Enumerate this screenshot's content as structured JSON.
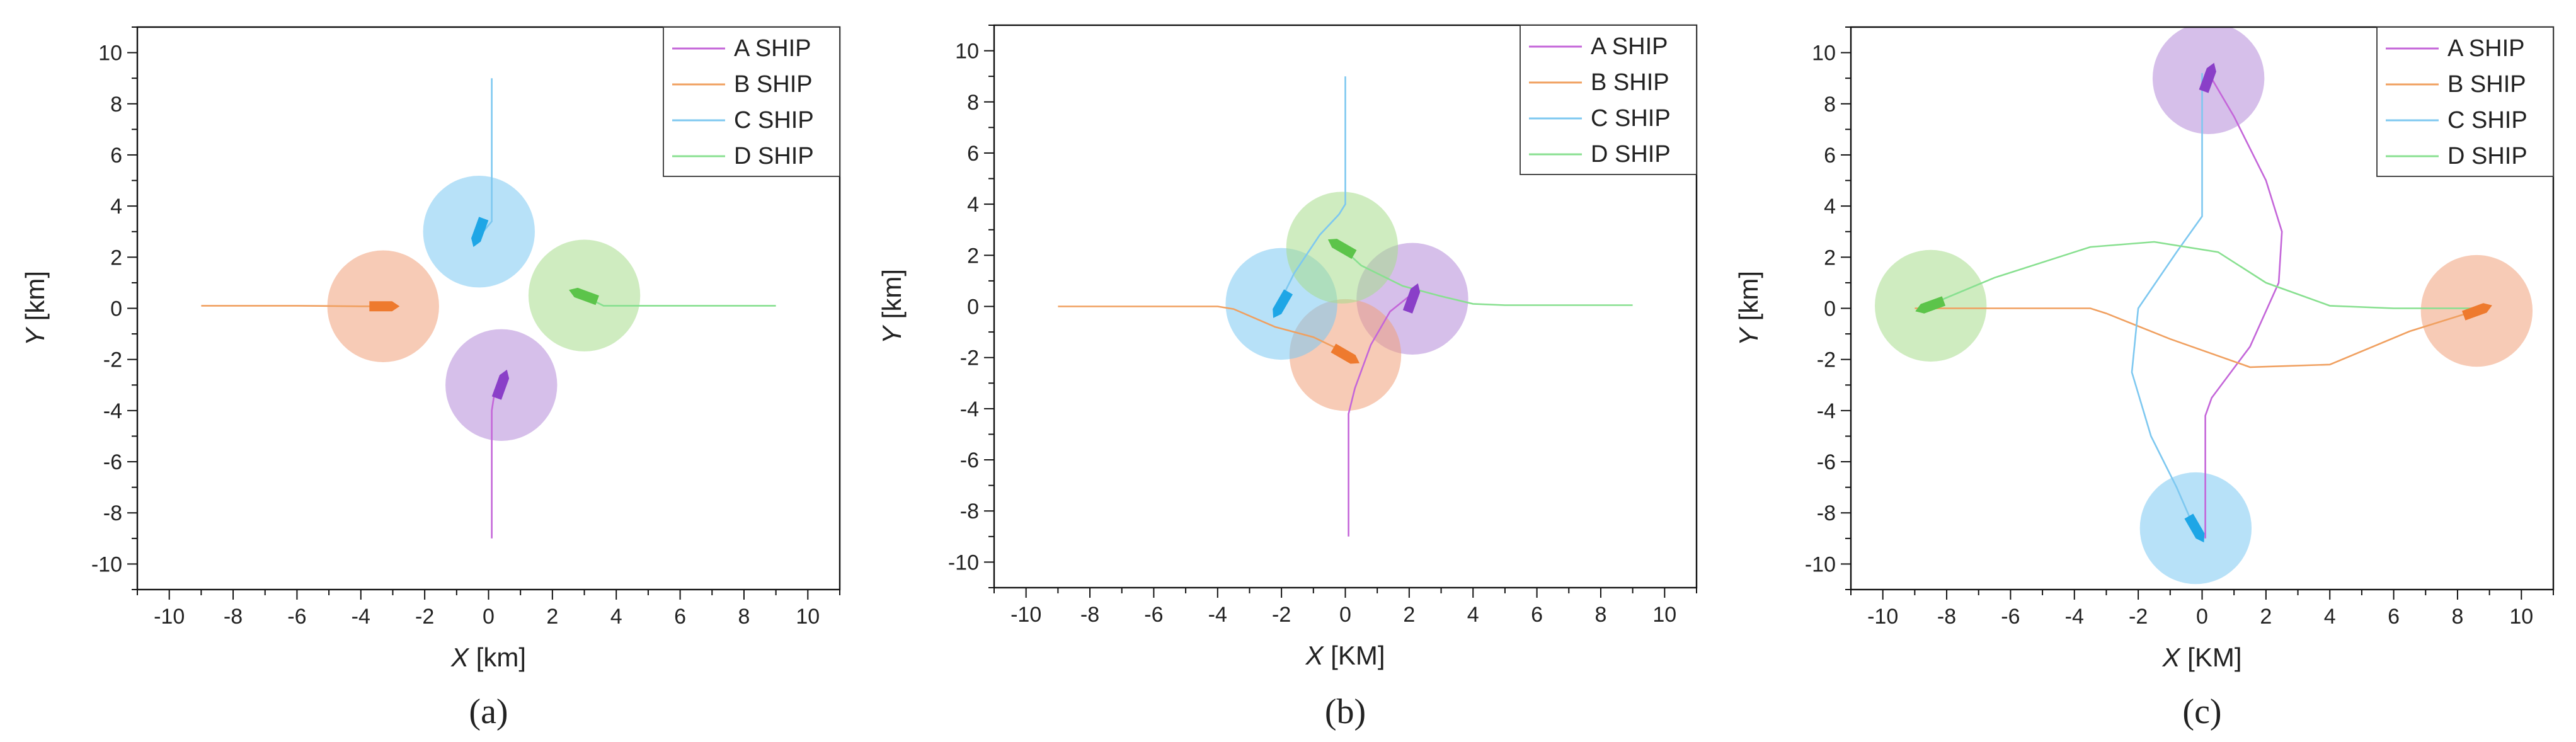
{
  "chart_data": [
    {
      "type": "line",
      "panel_label": "(a)",
      "xlabel_var": "X",
      "xlabel_unit": "[km]",
      "ylabel_var": "Y",
      "ylabel_unit": "[km]",
      "xlim": [
        -11,
        11
      ],
      "ylim": [
        -11,
        11
      ],
      "xticks": [
        -10,
        -8,
        -6,
        -4,
        -2,
        0,
        2,
        4,
        6,
        8,
        10
      ],
      "yticks": [
        -10,
        -8,
        -6,
        -4,
        -2,
        0,
        2,
        4,
        6,
        8,
        10
      ],
      "grid": false,
      "legend_position": "top-right",
      "series": [
        {
          "name": "A SHIP",
          "color": "#c466d9",
          "circle_color": "#b48ad8",
          "x": [
            0.1,
            0.1,
            0.2,
            0.4
          ],
          "y": [
            -9,
            -4,
            -3.2,
            -2.7
          ],
          "ship": {
            "x": 0.4,
            "y": -3.0,
            "heading": 70
          }
        },
        {
          "name": "B SHIP",
          "color": "#f0a060",
          "circle_color": "#f0a07a",
          "x": [
            -9,
            -6,
            -4,
            -3.2
          ],
          "y": [
            0.1,
            0.1,
            0.08,
            0.08
          ],
          "ship": {
            "x": -3.3,
            "y": 0.08,
            "heading": 0
          }
        },
        {
          "name": "C SHIP",
          "color": "#7ec8f0",
          "circle_color": "#7cc9f2",
          "x": [
            0.1,
            0.1,
            0.1,
            -0.3
          ],
          "y": [
            9,
            4,
            3.4,
            2.8
          ],
          "ship": {
            "x": -0.3,
            "y": 3.0,
            "heading": 250
          }
        },
        {
          "name": "D SHIP",
          "color": "#88e090",
          "circle_color": "#a8dc8c",
          "x": [
            9,
            6,
            3.6,
            2.8
          ],
          "y": [
            0.1,
            0.1,
            0.1,
            0.6
          ],
          "ship": {
            "x": 3.0,
            "y": 0.5,
            "heading": 160
          }
        }
      ]
    },
    {
      "type": "line",
      "panel_label": "(b)",
      "xlabel_var": "X",
      "xlabel_unit": "[KM]",
      "ylabel_var": "Y",
      "ylabel_unit": "[km]",
      "xlim": [
        -11,
        11
      ],
      "ylim": [
        -11,
        11
      ],
      "xticks": [
        -10,
        -8,
        -6,
        -4,
        -2,
        0,
        2,
        4,
        6,
        8,
        10
      ],
      "yticks": [
        -10,
        -8,
        -6,
        -4,
        -2,
        0,
        2,
        4,
        6,
        8,
        10
      ],
      "grid": false,
      "legend_position": "top-right",
      "series": [
        {
          "name": "A SHIP",
          "color": "#c466d9",
          "circle_color": "#b48ad8",
          "x": [
            0.1,
            0.1,
            0.3,
            0.8,
            1.4,
            2.0
          ],
          "y": [
            -9,
            -4.2,
            -3.2,
            -1.5,
            -0.2,
            0.4
          ],
          "ship": {
            "x": 2.1,
            "y": 0.3,
            "heading": 70
          }
        },
        {
          "name": "B SHIP",
          "color": "#f0a060",
          "circle_color": "#f0a07a",
          "x": [
            -9,
            -5,
            -4.0,
            -3.5,
            -2.2,
            -1.0,
            0.0
          ],
          "y": [
            0.0,
            0.0,
            0.0,
            -0.1,
            -0.8,
            -1.2,
            -1.8
          ],
          "ship": {
            "x": 0.0,
            "y": -1.9,
            "heading": 330
          }
        },
        {
          "name": "C SHIP",
          "color": "#7ec8f0",
          "circle_color": "#7cc9f2",
          "x": [
            0.0,
            0.0,
            -0.2,
            -0.8,
            -1.6,
            -2.0
          ],
          "y": [
            9,
            4,
            3.6,
            2.8,
            1.3,
            0.3
          ],
          "ship": {
            "x": -2.0,
            "y": 0.1,
            "heading": 240
          }
        },
        {
          "name": "D SHIP",
          "color": "#88e090",
          "circle_color": "#a8dc8c",
          "x": [
            9,
            5,
            4,
            3.0,
            1.8,
            0.5,
            -0.2
          ],
          "y": [
            0.05,
            0.05,
            0.1,
            0.4,
            0.8,
            1.6,
            2.4
          ],
          "ship": {
            "x": -0.1,
            "y": 2.3,
            "heading": 150
          }
        }
      ]
    },
    {
      "type": "line",
      "panel_label": "(c)",
      "xlabel_var": "X",
      "xlabel_unit": "[KM]",
      "ylabel_var": "Y",
      "ylabel_unit": "[km]",
      "xlim": [
        -11,
        11
      ],
      "ylim": [
        -11,
        11
      ],
      "xticks": [
        -10,
        -8,
        -6,
        -4,
        -2,
        0,
        2,
        4,
        6,
        8,
        10
      ],
      "yticks": [
        -10,
        -8,
        -6,
        -4,
        -2,
        0,
        2,
        4,
        6,
        8,
        10
      ],
      "grid": false,
      "legend_position": "top-right",
      "series": [
        {
          "name": "A SHIP",
          "color": "#c466d9",
          "circle_color": "#b48ad8",
          "x": [
            0.1,
            0.1,
            0.3,
            1.5,
            2.4,
            2.5,
            2.0,
            1.0,
            0.2
          ],
          "y": [
            -9,
            -4.2,
            -3.5,
            -1.5,
            1.0,
            3.0,
            5.0,
            7.5,
            9.2
          ],
          "ship": {
            "x": 0.2,
            "y": 9.0,
            "heading": 70
          }
        },
        {
          "name": "B SHIP",
          "color": "#f0a060",
          "circle_color": "#f0a07a",
          "x": [
            -9,
            -5,
            -3.5,
            -3.0,
            -1.0,
            1.5,
            4.0,
            6.5,
            8.8
          ],
          "y": [
            0.0,
            0.0,
            0.0,
            -0.2,
            -1.2,
            -2.3,
            -2.2,
            -0.9,
            0.0
          ],
          "ship": {
            "x": 8.6,
            "y": -0.1,
            "heading": 20
          }
        },
        {
          "name": "C SHIP",
          "color": "#7ec8f0",
          "circle_color": "#7cc9f2",
          "x": [
            0.0,
            0.0,
            -0.8,
            -2.0,
            -2.2,
            -1.6,
            -0.8,
            -0.1
          ],
          "y": [
            9.2,
            3.6,
            2.2,
            0.0,
            -2.5,
            -5.0,
            -7.0,
            -9.0
          ],
          "ship": {
            "x": -0.2,
            "y": -8.6,
            "heading": 300
          }
        },
        {
          "name": "D SHIP",
          "color": "#88e090",
          "circle_color": "#a8dc8c",
          "x": [
            9,
            6,
            4,
            2.0,
            0.5,
            -1.5,
            -3.5,
            -6.5,
            -8.8
          ],
          "y": [
            0.0,
            0.0,
            0.1,
            1.0,
            2.2,
            2.6,
            2.4,
            1.2,
            0.0
          ],
          "ship": {
            "x": -8.5,
            "y": 0.1,
            "heading": 200
          }
        }
      ]
    }
  ]
}
